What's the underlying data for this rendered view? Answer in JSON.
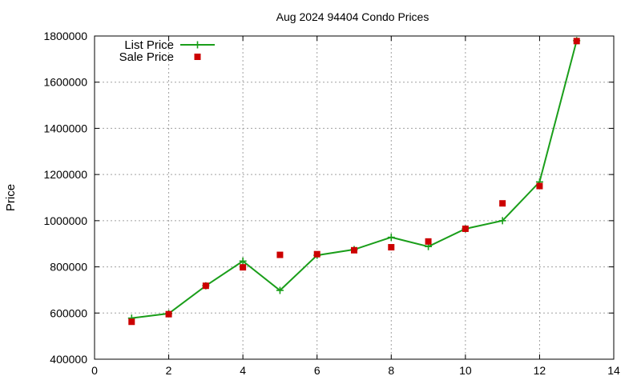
{
  "chart_data": {
    "type": "line",
    "title": "Aug 2024 94404 Condo Prices",
    "xlabel": "",
    "ylabel": "Price",
    "xlim": [
      0,
      14
    ],
    "ylim": [
      400000,
      1800000
    ],
    "x_ticks": [
      "0",
      "2",
      "4",
      "6",
      "8",
      "10",
      "12",
      "14"
    ],
    "y_ticks": [
      "400000",
      "600000",
      "800000",
      "1000000",
      "1200000",
      "1400000",
      "1600000",
      "1800000"
    ],
    "grid": true,
    "legend_position": "top-left",
    "series": [
      {
        "name": "List Price",
        "style": "line-with-plus-markers",
        "color": "#1a9e1a",
        "points": [
          [
            1,
            578000
          ],
          [
            2,
            598000
          ],
          [
            3,
            718000
          ],
          [
            4,
            825000
          ],
          [
            5,
            698000
          ],
          [
            6,
            850000
          ],
          [
            7,
            875000
          ],
          [
            8,
            928000
          ],
          [
            9,
            888000
          ],
          [
            10,
            965000
          ],
          [
            11,
            1000000
          ],
          [
            12,
            1168000
          ],
          [
            13,
            1780000
          ]
        ]
      },
      {
        "name": "Sale Price",
        "style": "square-markers",
        "color": "#cc0000",
        "points": [
          [
            1,
            562000
          ],
          [
            2,
            595000
          ],
          [
            3,
            718000
          ],
          [
            4,
            798000
          ],
          [
            5,
            852000
          ],
          [
            6,
            855000
          ],
          [
            7,
            872000
          ],
          [
            8,
            885000
          ],
          [
            9,
            910000
          ],
          [
            10,
            965000
          ],
          [
            11,
            1075000
          ],
          [
            12,
            1150000
          ],
          [
            13,
            1778000
          ]
        ]
      }
    ]
  }
}
